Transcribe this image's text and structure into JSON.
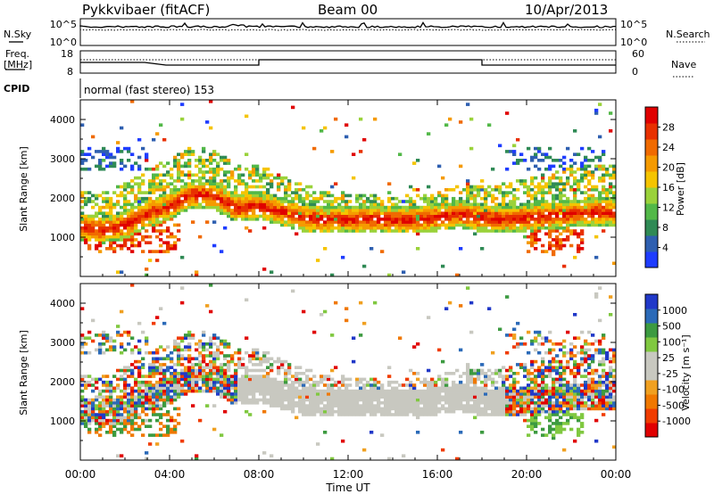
{
  "header": {
    "station": "Pykkvibaer (fitACF)",
    "beam": "Beam 00",
    "date": "10/Apr/2013"
  },
  "sky_panel": {
    "left_label": "N.Sky",
    "right_label": "N.Search",
    "left_ticks": [
      "10^5",
      "10^0"
    ],
    "right_ticks": [
      "10^5",
      "10^0"
    ]
  },
  "freq_panel": {
    "left_label_line1": "Freq.",
    "left_label_line2": "[MHz]",
    "right_label": "Nave",
    "left_ticks": [
      "18",
      "8"
    ],
    "right_ticks": [
      "60",
      "0"
    ]
  },
  "cpid": {
    "label": "CPID",
    "mode": "normal (fast stereo) 153"
  },
  "colors": {
    "power": [
      "#1e3cff",
      "#2e5fb0",
      "#2f8a55",
      "#52b848",
      "#9ad23a",
      "#f5c400",
      "#f59a00",
      "#f06a00",
      "#e83000",
      "#e00000"
    ],
    "velocity": [
      "#e00000",
      "#f03c00",
      "#f07800",
      "#f0a020",
      "#c8c8c0",
      "#c8c8c0",
      "#80c840",
      "#3c9a40",
      "#2b6ab8",
      "#2038c8"
    ]
  },
  "chart_data": [
    {
      "type": "heatmap",
      "name": "power",
      "ylabel": "Slant Range [km]",
      "y_ticks": [
        "1000",
        "2000",
        "3000",
        "4000"
      ],
      "ylim": [
        0,
        4500
      ],
      "colorbar_label": "Power [dB]",
      "colorbar_ticks": [
        "4",
        "8",
        "12",
        "16",
        "20",
        "24",
        "28"
      ],
      "colorbar_range": [
        0,
        30
      ]
    },
    {
      "type": "heatmap",
      "name": "velocity",
      "ylabel": "Slant Range [km]",
      "y_ticks": [
        "1000",
        "2000",
        "3000",
        "4000"
      ],
      "ylim": [
        0,
        4500
      ],
      "colorbar_label": "Velocity [m s⁻¹]",
      "colorbar_ticks": [
        "-1000",
        "-500",
        "-100",
        "-25",
        "25",
        "100",
        "500",
        "1000"
      ]
    }
  ],
  "time_axis": {
    "label": "Time UT",
    "ticks": [
      "00:00",
      "04:00",
      "08:00",
      "12:00",
      "16:00",
      "20:00",
      "00:00"
    ]
  }
}
